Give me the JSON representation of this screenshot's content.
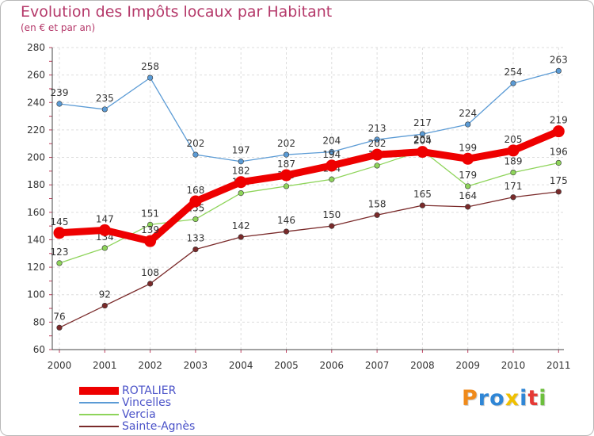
{
  "title": "Evolution des Impôts locaux par Habitant",
  "subtitle": "(en € et par an)",
  "chart_data": {
    "type": "line",
    "title": "Evolution des Impôts locaux par Habitant",
    "subtitle": "(en € et par an)",
    "xlabel": "",
    "ylabel": "",
    "ylim": [
      60,
      280
    ],
    "yticks": [
      "60",
      "80",
      "100",
      "120",
      "140",
      "160",
      "180",
      "200",
      "220",
      "240",
      "260",
      "280"
    ],
    "categories": [
      "2000",
      "2001",
      "2002",
      "2003",
      "2004",
      "2005",
      "2006",
      "2007",
      "2008",
      "2009",
      "2010",
      "2011"
    ],
    "grid": true,
    "legend": "bottom-left",
    "series": [
      {
        "name": "Vincelles",
        "color": "#5b9bd5",
        "values": [
          239,
          235,
          258,
          202,
          197,
          202,
          204,
          213,
          217,
          224,
          254,
          263
        ],
        "labels": [
          "239",
          "235",
          "258",
          "202",
          "197",
          "202",
          "204",
          "213",
          "217",
          "224",
          "254",
          "263"
        ]
      },
      {
        "name": "Vercia",
        "color": "#8ed45a",
        "values": [
          123,
          134,
          151,
          155,
          174,
          179,
          184,
          194,
          205,
          179,
          189,
          196
        ],
        "labels": [
          "123",
          "134",
          "151",
          "155",
          "174",
          "179",
          "184",
          "194",
          "205",
          "179",
          "189",
          "196"
        ]
      },
      {
        "name": "Sainte-Agnès",
        "color": "#7a2a2a",
        "values": [
          76,
          92,
          108,
          133,
          142,
          146,
          150,
          158,
          165,
          164,
          171,
          175
        ],
        "labels": [
          "76",
          "92",
          "108",
          "133",
          "142",
          "146",
          "150",
          "158",
          "165",
          "164",
          "171",
          "175"
        ]
      },
      {
        "name": "ROTALIER",
        "color": "#ee0000",
        "values": [
          145,
          147,
          139,
          168,
          182,
          187,
          194,
          202,
          204,
          199,
          205,
          219
        ],
        "labels": [
          "145",
          "147",
          "139",
          "168",
          "182",
          "187",
          "194",
          "202",
          "204",
          "199",
          "205",
          "219"
        ]
      }
    ]
  },
  "legend": [
    "ROTALIER",
    "Vincelles",
    "Vercia",
    "Sainte-Agnès"
  ],
  "brand": {
    "letters": [
      "P",
      "r",
      "o",
      "x",
      "i",
      "t",
      "i"
    ],
    "colors": [
      "#f08a1a",
      "#2f86d6",
      "#2f86d6",
      "#f0c000",
      "#2f86d6",
      "#e53935",
      "#6cbf3c"
    ]
  }
}
